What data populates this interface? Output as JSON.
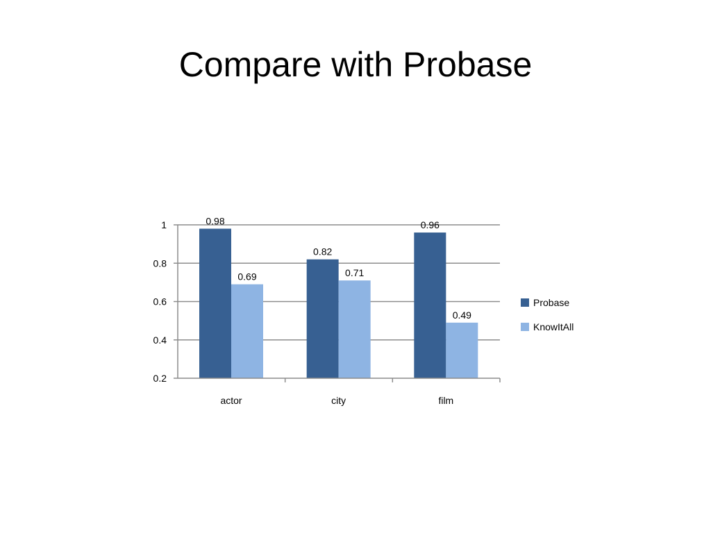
{
  "slide": {
    "title": "Compare with Probase"
  },
  "chart_data": {
    "type": "bar",
    "categories": [
      "actor",
      "city",
      "film"
    ],
    "series": [
      {
        "name": "Probase",
        "values": [
          0.98,
          0.82,
          0.96
        ],
        "labels": [
          "0.98",
          "0.82",
          "0.96"
        ],
        "color": "#376092"
      },
      {
        "name": "KnowItAll",
        "values": [
          0.69,
          0.71,
          0.49
        ],
        "labels": [
          "0.69",
          "0.71",
          "0.49"
        ],
        "color": "#8EB4E3"
      }
    ],
    "ylim": [
      0.2,
      1
    ],
    "yticks": [
      {
        "value": 0.2,
        "label": "0.2"
      },
      {
        "value": 0.4,
        "label": "0.4"
      },
      {
        "value": 0.6,
        "label": "0.6"
      },
      {
        "value": 0.8,
        "label": "0.8"
      },
      {
        "value": 1,
        "label": "1"
      }
    ],
    "grid": true,
    "legend": "right",
    "title": "",
    "xlabel": "",
    "ylabel": ""
  }
}
